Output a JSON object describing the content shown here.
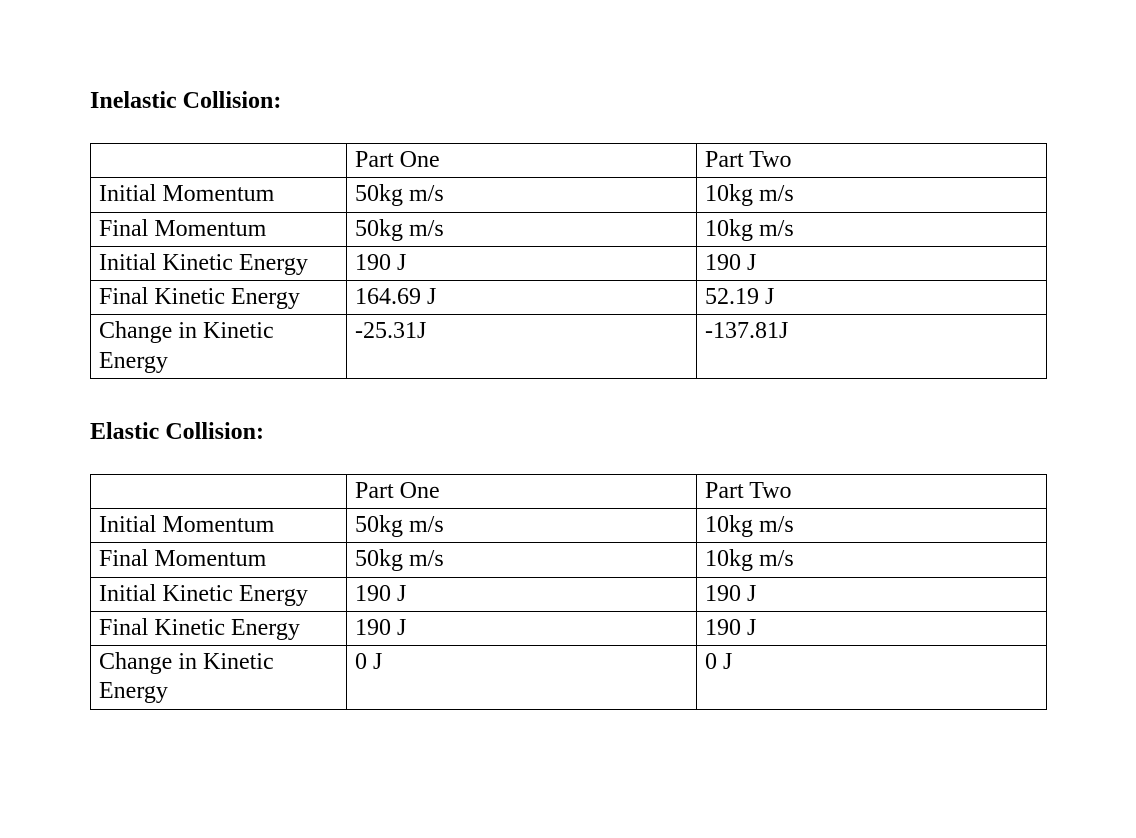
{
  "sections": [
    {
      "title": "Inelastic Collision:",
      "columns": [
        "",
        "Part One",
        "Part Two"
      ],
      "rows": [
        [
          "Initial Momentum",
          "50kg m/s",
          "10kg m/s"
        ],
        [
          "Final Momentum",
          "50kg m/s",
          "10kg m/s"
        ],
        [
          "Initial Kinetic Energy",
          "190 J",
          "190 J"
        ],
        [
          "Final Kinetic Energy",
          "164.69 J",
          "52.19 J"
        ],
        [
          "Change in Kinetic Energy",
          "-25.31J",
          "-137.81J"
        ]
      ]
    },
    {
      "title": "Elastic Collision:",
      "columns": [
        "",
        "Part One",
        "Part Two"
      ],
      "rows": [
        [
          "Initial Momentum",
          "50kg m/s",
          "10kg m/s"
        ],
        [
          "Final Momentum",
          "50kg m/s",
          "10kg m/s"
        ],
        [
          "Initial Kinetic Energy",
          "190 J",
          "190 J"
        ],
        [
          "Final Kinetic Energy",
          "190 J",
          "190 J"
        ],
        [
          "Change in Kinetic Energy",
          "0 J",
          "0 J"
        ]
      ]
    }
  ]
}
